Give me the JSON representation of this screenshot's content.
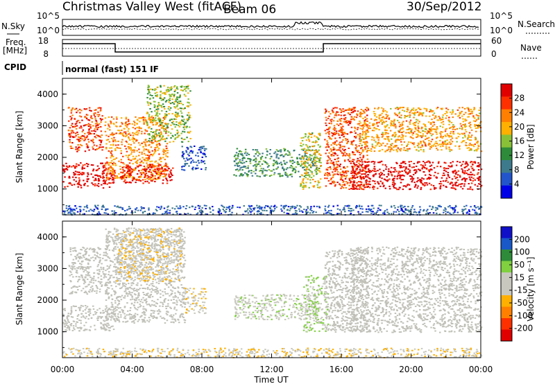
{
  "header": {
    "title": "Christmas Valley West (fitACF)",
    "beam": "Beam 06",
    "date": "30/Sep/2012"
  },
  "panels": {
    "nsky": {
      "label": "N.Sky",
      "ticks": [
        "10^5",
        "10^0"
      ]
    },
    "nsearch": {
      "label": "N.Search",
      "ticks": [
        "10^5",
        "10^0"
      ]
    },
    "freq": {
      "label_line1": "Freq.",
      "label_line2": "[MHz]",
      "ticks": [
        "18",
        "8"
      ]
    },
    "nave": {
      "label": "Nave",
      "ticks": [
        "60",
        "0"
      ]
    },
    "cpid": {
      "label": "CPID",
      "text": "normal (fast) 151 IF"
    }
  },
  "colors": {
    "power_scale": [
      "#0000e6",
      "#2255cc",
      "#3d7a8c",
      "#2e8b3a",
      "#88c038",
      "#ffb000",
      "#ff8000",
      "#ff3000",
      "#e00000"
    ],
    "velocity_scale": [
      "#e00000",
      "#ff3000",
      "#ff8000",
      "#ffb000",
      "#c8c8be",
      "#c8c8be",
      "#80d040",
      "#2e8b3a",
      "#1858c8",
      "#1010c8"
    ],
    "ground_scatter": "#c0c0b8"
  },
  "chart_data": [
    {
      "type": "heatmap",
      "name": "power",
      "xlabel": "Time UT",
      "ylabel": "Slant Range [km]",
      "x_ticks": [
        "00:00",
        "04:00",
        "08:00",
        "12:00",
        "16:00",
        "20:00",
        "00:00"
      ],
      "y_ticks": [
        "1000",
        "2000",
        "3000",
        "4000"
      ],
      "xlim_hours": [
        0,
        24
      ],
      "ylim_km": [
        180,
        4500
      ],
      "colorbar": {
        "label": "Power [dB]",
        "ticks": [
          "28",
          "24",
          "20",
          "16",
          "12",
          "8",
          "4"
        ],
        "range": [
          0,
          30
        ]
      },
      "regions": [
        {
          "t0": 0.0,
          "t1": 2.9,
          "r0": 1050,
          "r1": 1850,
          "level": 29
        },
        {
          "t0": 0.3,
          "t1": 2.3,
          "r0": 2200,
          "r1": 3600,
          "level": 25
        },
        {
          "t0": 2.4,
          "t1": 6.0,
          "r0": 1300,
          "r1": 3300,
          "level": 21
        },
        {
          "t0": 3.3,
          "t1": 6.3,
          "r0": 1200,
          "r1": 1800,
          "level": 27
        },
        {
          "t0": 4.8,
          "t1": 7.3,
          "r0": 2500,
          "r1": 4300,
          "level": 15
        },
        {
          "t0": 6.8,
          "t1": 8.2,
          "r0": 1600,
          "r1": 2400,
          "level": 5
        },
        {
          "t0": 9.8,
          "t1": 14.6,
          "r0": 1400,
          "r1": 2300,
          "level": 11
        },
        {
          "t0": 13.6,
          "t1": 14.8,
          "r0": 1000,
          "r1": 2800,
          "level": 17
        },
        {
          "t0": 15.0,
          "t1": 17.5,
          "r0": 1000,
          "r1": 3600,
          "level": 24
        },
        {
          "t0": 16.5,
          "t1": 24.0,
          "r0": 1000,
          "r1": 1900,
          "level": 29
        },
        {
          "t0": 17.0,
          "t1": 24.0,
          "r0": 2200,
          "r1": 3600,
          "level": 20
        },
        {
          "t0": 0.0,
          "t1": 24.0,
          "r0": 200,
          "r1": 500,
          "level": 6
        }
      ]
    },
    {
      "type": "heatmap",
      "name": "velocity",
      "xlabel": "Time UT",
      "ylabel": "Slant Range [km]",
      "x_ticks": [
        "00:00",
        "04:00",
        "08:00",
        "12:00",
        "16:00",
        "20:00",
        "00:00"
      ],
      "y_ticks": [
        "1000",
        "2000",
        "3000",
        "4000"
      ],
      "xlim_hours": [
        0,
        24
      ],
      "ylim_km": [
        180,
        4500
      ],
      "colorbar": {
        "label": "Velocity [m s⁻¹]",
        "ticks": [
          "200",
          "100",
          "50",
          "15",
          "-15",
          "-50",
          "-100",
          "-200"
        ],
        "range": [
          -250,
          250
        ]
      },
      "regions": [
        {
          "t0": 0.0,
          "t1": 2.9,
          "r0": 1050,
          "r1": 1850,
          "level": "gs"
        },
        {
          "t0": 0.3,
          "t1": 2.5,
          "r0": 2200,
          "r1": 3700,
          "level": "gs"
        },
        {
          "t0": 2.4,
          "t1": 7.0,
          "r0": 1300,
          "r1": 4300,
          "level": "gs"
        },
        {
          "t0": 3.0,
          "t1": 6.8,
          "r0": 2600,
          "r1": 4300,
          "level": -40
        },
        {
          "t0": 7.0,
          "t1": 8.2,
          "r0": 1600,
          "r1": 2400,
          "level": -40
        },
        {
          "t0": 9.8,
          "t1": 14.6,
          "r0": 1400,
          "r1": 2200,
          "level": 30
        },
        {
          "t0": 13.8,
          "t1": 15.2,
          "r0": 1000,
          "r1": 2800,
          "level": 45
        },
        {
          "t0": 15.0,
          "t1": 17.5,
          "r0": 1000,
          "r1": 3600,
          "level": "gs"
        },
        {
          "t0": 16.5,
          "t1": 24.0,
          "r0": 1000,
          "r1": 3700,
          "level": "gs"
        },
        {
          "t0": 0.0,
          "t1": 24.0,
          "r0": 200,
          "r1": 500,
          "level": -40
        }
      ]
    }
  ]
}
